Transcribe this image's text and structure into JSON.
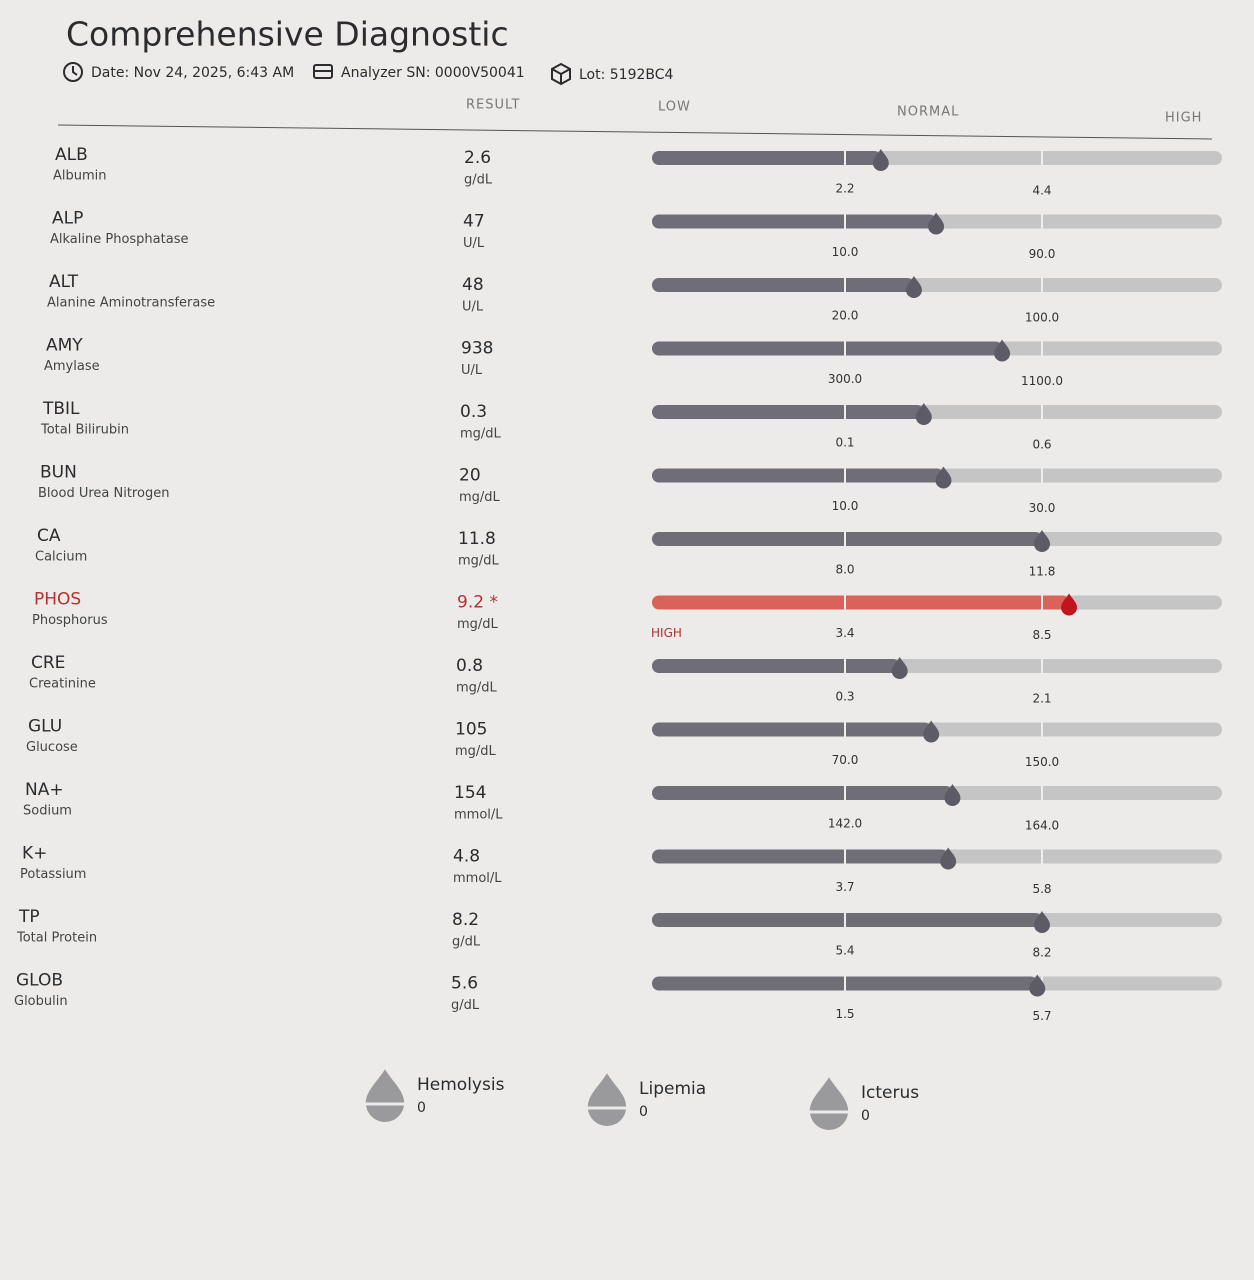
{
  "header": {
    "title": "Comprehensive Diagnostic",
    "date": "Date: Nov 24, 2025, 6:43 AM",
    "analyzer": "Analyzer SN: 0000V50041",
    "lot": "Lot: 5192BC4"
  },
  "columns": {
    "result": "RESULT",
    "low": "LOW",
    "normal": "NORMAL",
    "high": "HIGH"
  },
  "rows": [
    {
      "code": "ALB",
      "name": "Albumin",
      "result": "2.6",
      "unit": "g/dL",
      "low": "2.2",
      "high": "4.4"
    },
    {
      "code": "ALP",
      "name": "Alkaline Phosphatase",
      "result": "47",
      "unit": "U/L",
      "low": "10.0",
      "high": "90.0"
    },
    {
      "code": "ALT",
      "name": "Alanine Aminotransferase",
      "result": "48",
      "unit": "U/L",
      "low": "20.0",
      "high": "100.0"
    },
    {
      "code": "AMY",
      "name": "Amylase",
      "result": "938",
      "unit": "U/L",
      "low": "300.0",
      "high": "1100.0"
    },
    {
      "code": "TBIL",
      "name": "Total Bilirubin",
      "result": "0.3",
      "unit": "mg/dL",
      "low": "0.1",
      "high": "0.6"
    },
    {
      "code": "BUN",
      "name": "Blood Urea Nitrogen",
      "result": "20",
      "unit": "mg/dL",
      "low": "10.0",
      "high": "30.0"
    },
    {
      "code": "CA",
      "name": "Calcium",
      "result": "11.8",
      "unit": "mg/dL",
      "low": "8.0",
      "high": "11.8"
    },
    {
      "code": "PHOS",
      "name": "Phosphorus",
      "result": "9.2 *",
      "unit": "mg/dL",
      "low": "3.4",
      "high": "8.5",
      "flag": "HIGH"
    },
    {
      "code": "CRE",
      "name": "Creatinine",
      "result": "0.8",
      "unit": "mg/dL",
      "low": "0.3",
      "high": "2.1"
    },
    {
      "code": "GLU",
      "name": "Glucose",
      "result": "105",
      "unit": "mg/dL",
      "low": "70.0",
      "high": "150.0"
    },
    {
      "code": "NA+",
      "name": "Sodium",
      "result": "154",
      "unit": "mmol/L",
      "low": "142.0",
      "high": "164.0"
    },
    {
      "code": "K+",
      "name": "Potassium",
      "result": "4.8",
      "unit": "mmol/L",
      "low": "3.7",
      "high": "5.8"
    },
    {
      "code": "TP",
      "name": "Total Protein",
      "result": "8.2",
      "unit": "g/dL",
      "low": "5.4",
      "high": "8.2"
    },
    {
      "code": "GLOB",
      "name": "Globulin",
      "result": "5.6",
      "unit": "g/dL",
      "low": "1.5",
      "high": "5.7"
    }
  ],
  "interference": [
    {
      "name": "Hemolysis",
      "value": "0"
    },
    {
      "name": "Lipemia",
      "value": "0"
    },
    {
      "name": "Icterus",
      "value": "0"
    }
  ]
}
